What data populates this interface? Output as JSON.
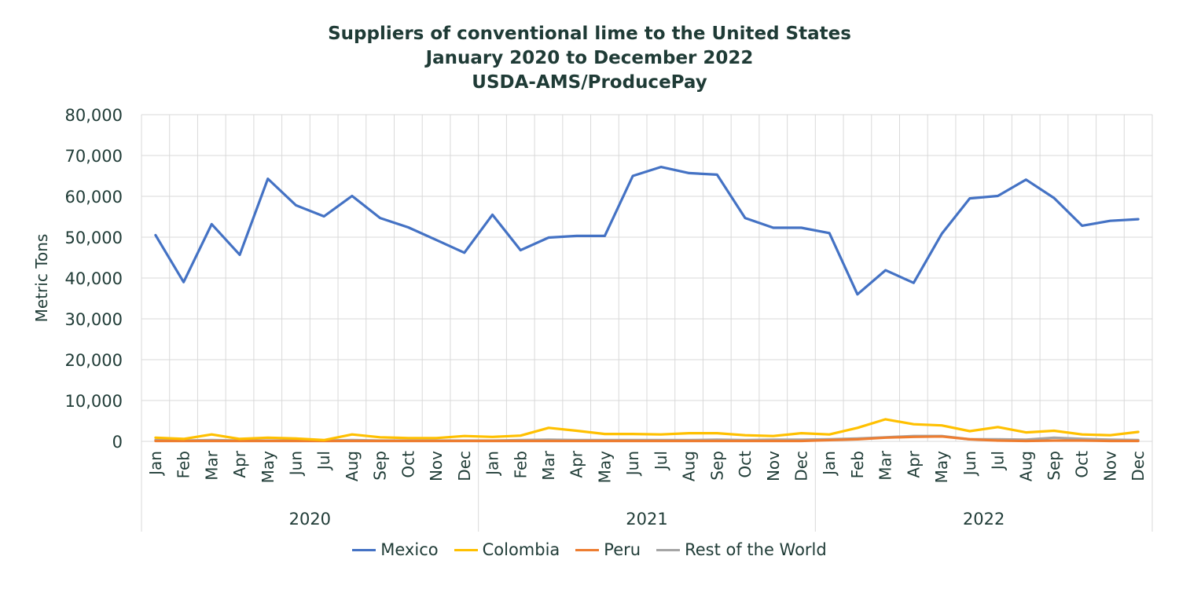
{
  "chart_data": {
    "type": "line",
    "title_lines": [
      "Suppliers of conventional lime to the United States",
      "January 2020 to December 2022",
      "USDA-AMS/ProducePay"
    ],
    "ylabel": "Metric Tons",
    "xlabel": "",
    "ylim": [
      0,
      80000
    ],
    "yticks": [
      "0",
      "10,000",
      "20,000",
      "30,000",
      "40,000",
      "50,000",
      "60,000",
      "70,000",
      "80,000"
    ],
    "years": [
      "2020",
      "2021",
      "2022"
    ],
    "months": [
      "Jan",
      "Feb",
      "Mar",
      "Apr",
      "May",
      "Jun",
      "Jul",
      "Aug",
      "Sep",
      "Oct",
      "Nov",
      "Dec"
    ],
    "grid": true,
    "legend_position": "bottom",
    "series": [
      {
        "name": "Mexico",
        "color": "#4472c4",
        "values": [
          50500,
          39000,
          53200,
          45700,
          64300,
          57800,
          55100,
          60100,
          54700,
          52400,
          49300,
          46200,
          55500,
          46800,
          49900,
          50300,
          50300,
          65000,
          67200,
          65700,
          65300,
          54700,
          52300,
          52300,
          51000,
          36000,
          41900,
          38800,
          50800,
          59500,
          60100,
          64100,
          59600,
          52800,
          54000,
          54400
        ]
      },
      {
        "name": "Colombia",
        "color": "#ffc000",
        "values": [
          900,
          600,
          1700,
          600,
          900,
          700,
          300,
          1700,
          1000,
          800,
          800,
          1300,
          1100,
          1400,
          3300,
          2600,
          1800,
          1800,
          1700,
          2000,
          2000,
          1500,
          1300,
          2000,
          1700,
          3300,
          5400,
          4200,
          3900,
          2500,
          3500,
          2200,
          2600,
          1700,
          1500,
          2300
        ]
      },
      {
        "name": "Peru",
        "color": "#ed7d31",
        "values": [
          100,
          100,
          100,
          100,
          100,
          100,
          100,
          100,
          100,
          100,
          100,
          100,
          100,
          100,
          100,
          100,
          100,
          100,
          100,
          100,
          100,
          100,
          100,
          100,
          300,
          500,
          900,
          1100,
          1200,
          500,
          200,
          100,
          200,
          200,
          100,
          100
        ]
      },
      {
        "name": "Rest of the World",
        "color": "#a5a5a5",
        "values": [
          300,
          200,
          300,
          200,
          200,
          200,
          200,
          300,
          200,
          200,
          200,
          200,
          200,
          300,
          400,
          300,
          300,
          300,
          300,
          300,
          400,
          300,
          400,
          400,
          500,
          700,
          1000,
          1300,
          1300,
          500,
          500,
          400,
          900,
          600,
          400,
          300
        ]
      }
    ]
  }
}
